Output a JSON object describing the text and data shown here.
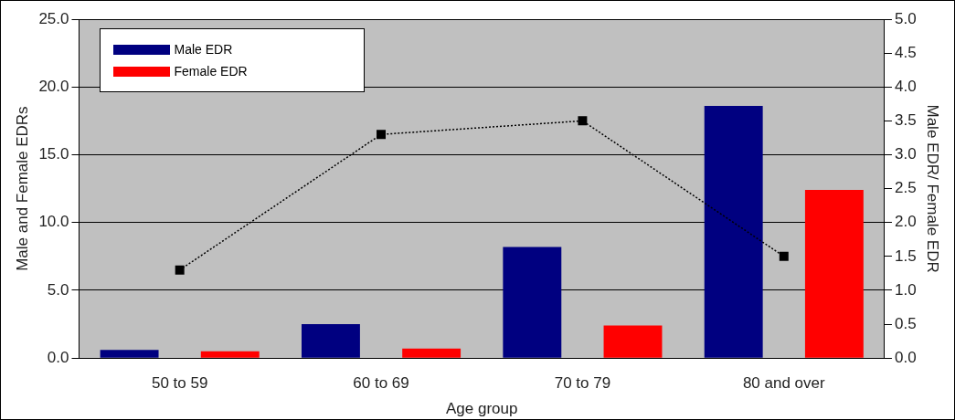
{
  "chart_data": {
    "type": "bar",
    "xlabel": "Age group",
    "ylabel": "Male and Female EDRs",
    "y2label": "Male EDR/ Female EDR",
    "categories": [
      "50 to 59",
      "60 to 69",
      "70 to 79",
      "80 and over"
    ],
    "series": [
      {
        "name": "Male EDR",
        "color": "#000080",
        "values": [
          0.6,
          2.5,
          8.2,
          18.6
        ]
      },
      {
        "name": "Female EDR",
        "color": "#ff0000",
        "values": [
          0.5,
          0.7,
          2.4,
          12.4
        ]
      },
      {
        "type": "line",
        "axis": "y2",
        "color": "#000000",
        "values": [
          1.3,
          3.3,
          3.5,
          1.5
        ],
        "marker": "square",
        "line_style": "dotted"
      }
    ],
    "ylim": [
      0,
      25
    ],
    "yticks": [
      {
        "value": 0,
        "label": "0.0"
      },
      {
        "value": 5,
        "label": "5.0"
      },
      {
        "value": 10,
        "label": "10.0"
      },
      {
        "value": 15,
        "label": "15.0"
      },
      {
        "value": 20,
        "label": "20.0"
      },
      {
        "value": 25,
        "label": "25.0"
      }
    ],
    "y2lim": [
      0,
      5
    ],
    "y2ticks": [
      {
        "value": 0,
        "label": "0.0"
      },
      {
        "value": 0.5,
        "label": "0.5"
      },
      {
        "value": 1,
        "label": "1.0"
      },
      {
        "value": 1.5,
        "label": "1.5"
      },
      {
        "value": 2,
        "label": "2.0"
      },
      {
        "value": 2.5,
        "label": "2.5"
      },
      {
        "value": 3,
        "label": "3.0"
      },
      {
        "value": 3.5,
        "label": "3.5"
      },
      {
        "value": 4,
        "label": "4.0"
      },
      {
        "value": 4.5,
        "label": "4.5"
      },
      {
        "value": 5,
        "label": "5.0"
      }
    ],
    "grid": "y",
    "legend": "top left"
  }
}
